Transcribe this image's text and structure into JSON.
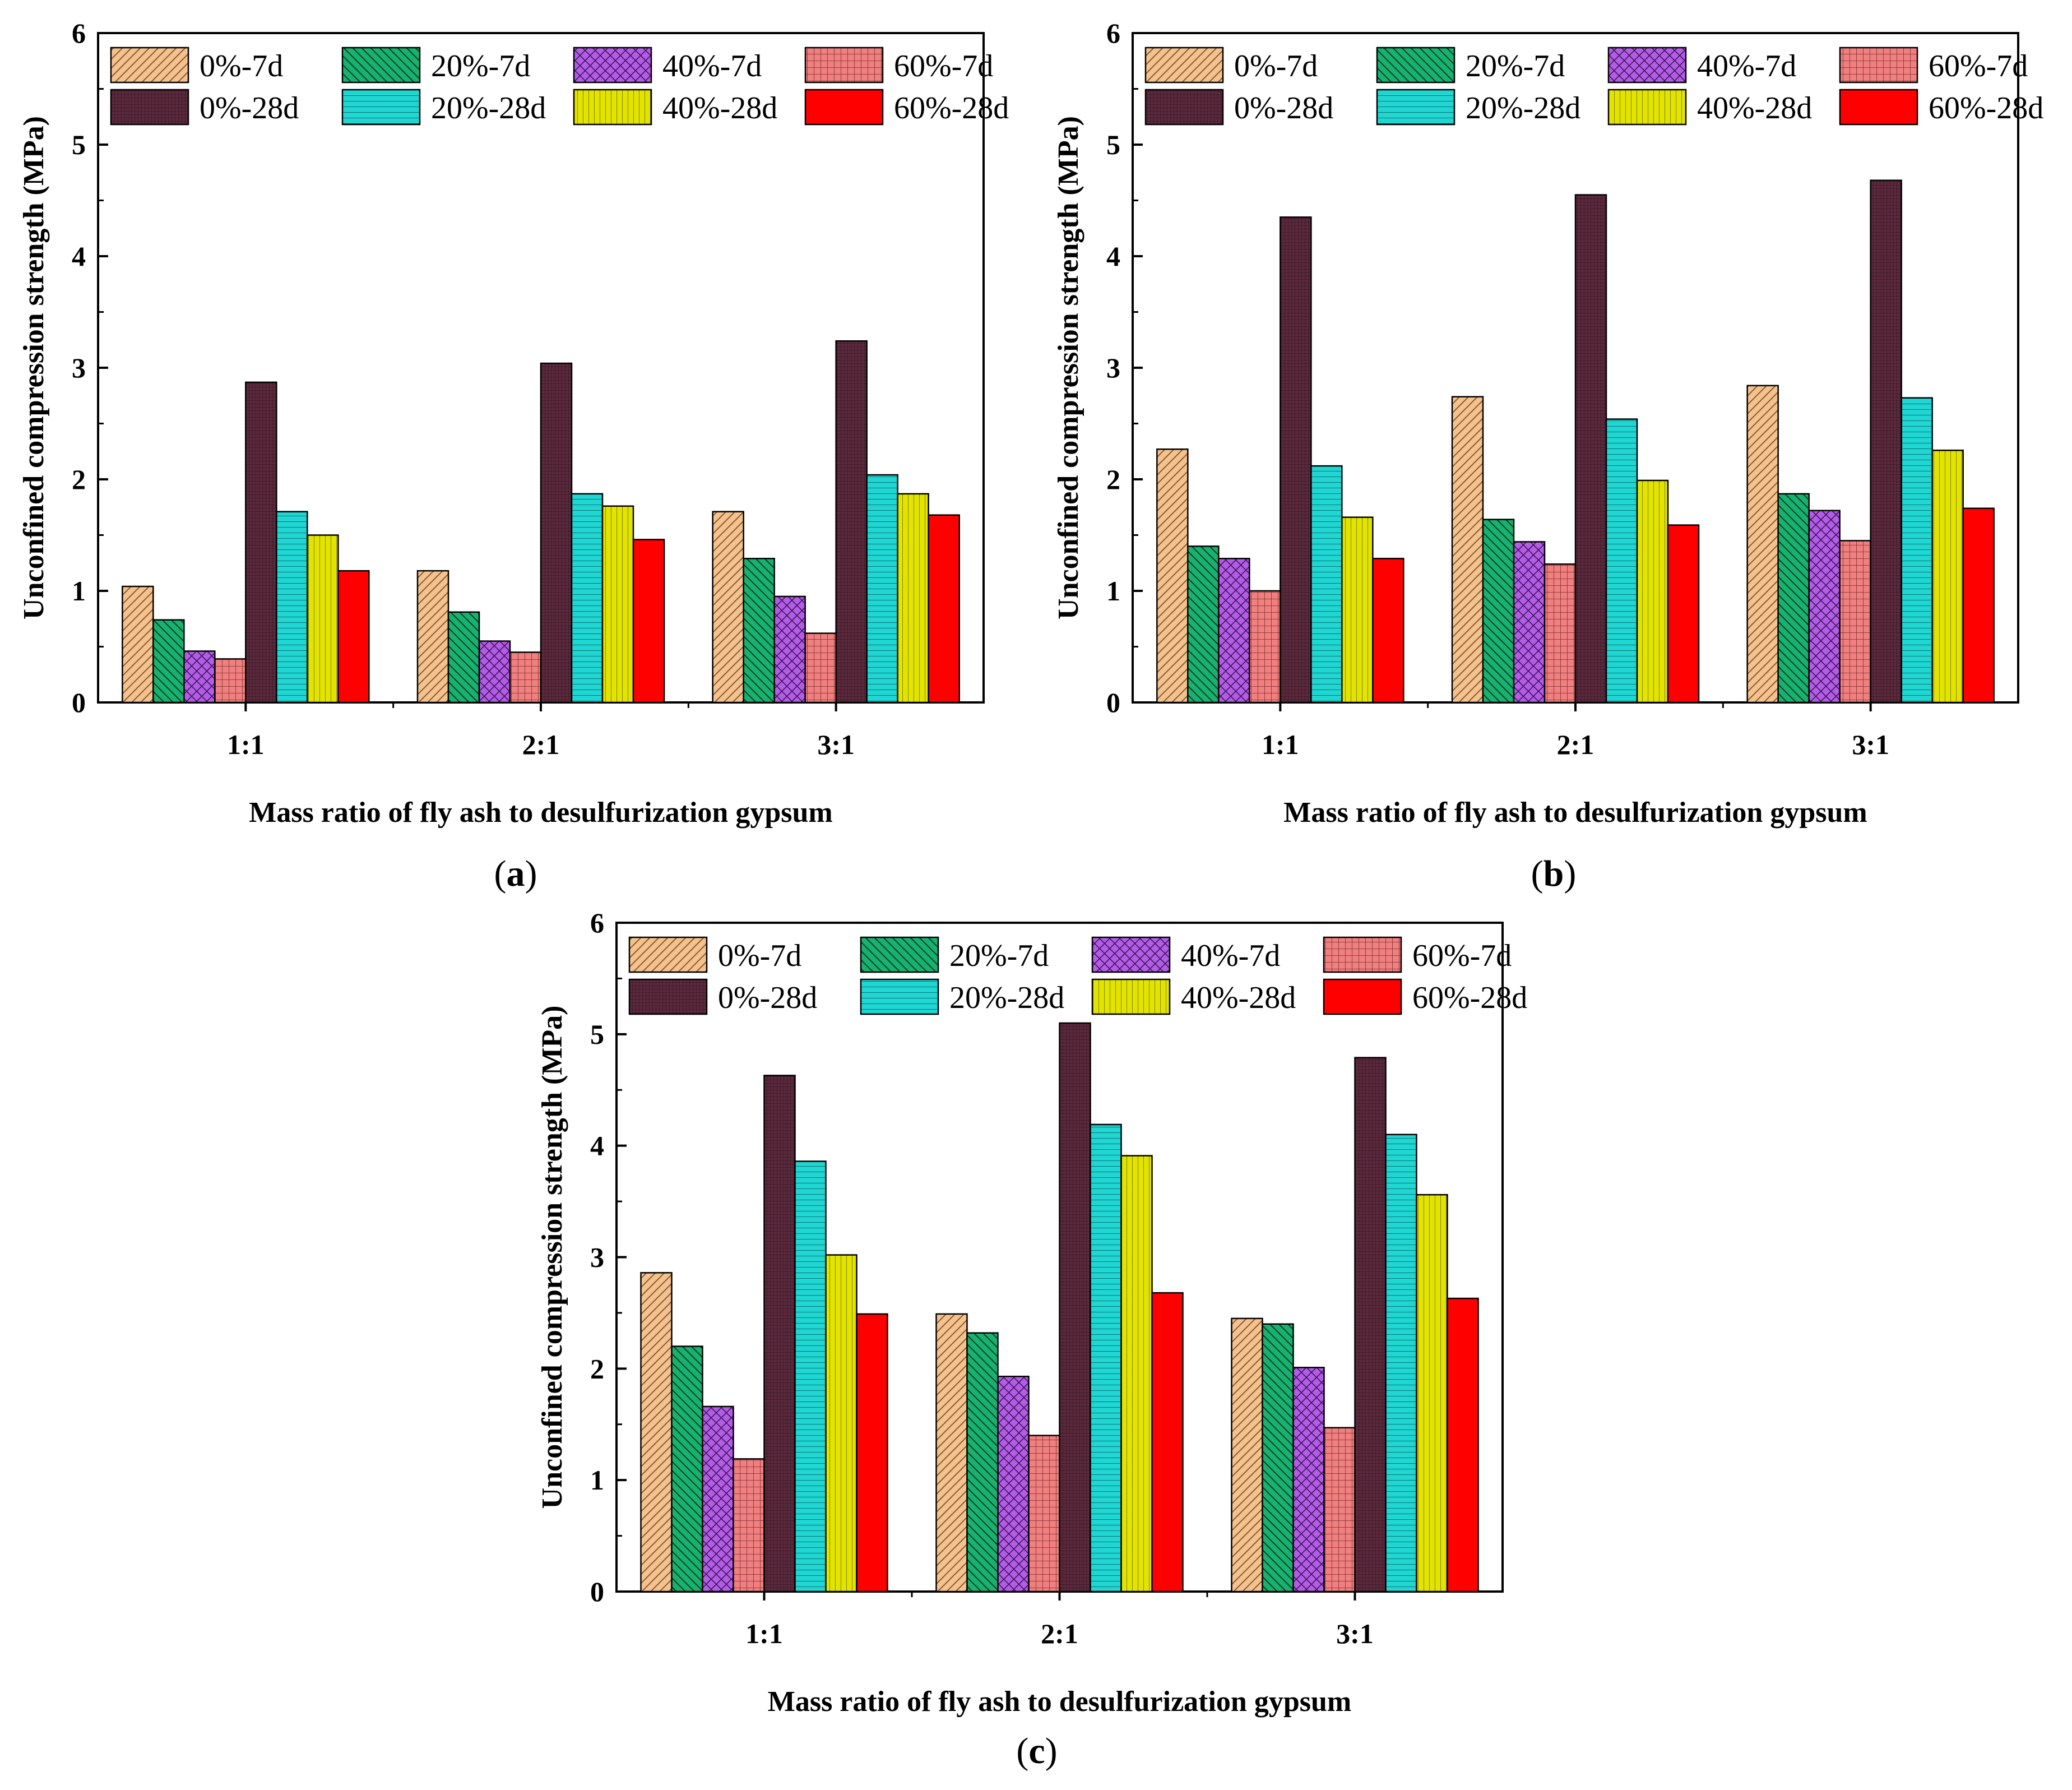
{
  "series_styles": [
    {
      "name": "0%-7d",
      "color": "#F4C28E",
      "pattern": "diag-fwd"
    },
    {
      "name": "20%-7d",
      "color": "#17B26F",
      "pattern": "diag-back"
    },
    {
      "name": "40%-7d",
      "color": "#B35CE6",
      "pattern": "cross-diag"
    },
    {
      "name": "60%-7d",
      "color": "#F08080",
      "pattern": "grid"
    },
    {
      "name": "0%-28d",
      "color": "#5A2A3C",
      "pattern": "dense"
    },
    {
      "name": "20%-28d",
      "color": "#1FD6D2",
      "pattern": "horiz"
    },
    {
      "name": "40%-28d",
      "color": "#E3E300",
      "pattern": "vert"
    },
    {
      "name": "60%-28d",
      "color": "#FF0000",
      "pattern": "solid"
    }
  ],
  "chart_data": [
    {
      "type": "bar",
      "caption_prefix": "(",
      "caption_letter": "a",
      "caption_suffix": ")",
      "categories": [
        "1:1",
        "2:1",
        "3:1"
      ],
      "xlabel": "Mass ratio of fly ash to desulfurization gypsum",
      "ylabel": "Unconfined compression strength (MPa)",
      "ylim": [
        0,
        6
      ],
      "yticks": [
        "0",
        "1",
        "2",
        "3",
        "4",
        "5",
        "6"
      ],
      "legend": "top",
      "series": [
        {
          "name": "0%-7d",
          "values": [
            1.04,
            1.18,
            1.71
          ]
        },
        {
          "name": "20%-7d",
          "values": [
            0.74,
            0.81,
            1.29
          ]
        },
        {
          "name": "40%-7d",
          "values": [
            0.46,
            0.55,
            0.95
          ]
        },
        {
          "name": "60%-7d",
          "values": [
            0.39,
            0.45,
            0.62
          ]
        },
        {
          "name": "0%-28d",
          "values": [
            2.87,
            3.04,
            3.24
          ]
        },
        {
          "name": "20%-28d",
          "values": [
            1.71,
            1.87,
            2.04
          ]
        },
        {
          "name": "40%-28d",
          "values": [
            1.5,
            1.76,
            1.87
          ]
        },
        {
          "name": "60%-28d",
          "values": [
            1.18,
            1.46,
            1.68
          ]
        }
      ]
    },
    {
      "type": "bar",
      "caption_prefix": "(",
      "caption_letter": "b",
      "caption_suffix": ")",
      "categories": [
        "1:1",
        "2:1",
        "3:1"
      ],
      "xlabel": "Mass ratio of fly ash to desulfurization gypsum",
      "ylabel": "Unconfined compression strength (MPa)",
      "ylim": [
        0,
        6
      ],
      "yticks": [
        "0",
        "1",
        "2",
        "3",
        "4",
        "5",
        "6"
      ],
      "legend": "top",
      "series": [
        {
          "name": "0%-7d",
          "values": [
            2.27,
            2.74,
            2.84
          ]
        },
        {
          "name": "20%-7d",
          "values": [
            1.4,
            1.64,
            1.87
          ]
        },
        {
          "name": "40%-7d",
          "values": [
            1.29,
            1.44,
            1.72
          ]
        },
        {
          "name": "60%-7d",
          "values": [
            1.0,
            1.24,
            1.45
          ]
        },
        {
          "name": "0%-28d",
          "values": [
            4.35,
            4.55,
            4.68
          ]
        },
        {
          "name": "20%-28d",
          "values": [
            2.12,
            2.54,
            2.73
          ]
        },
        {
          "name": "40%-28d",
          "values": [
            1.66,
            1.99,
            2.26
          ]
        },
        {
          "name": "60%-28d",
          "values": [
            1.29,
            1.59,
            1.74
          ]
        }
      ]
    },
    {
      "type": "bar",
      "caption_prefix": "(",
      "caption_letter": "c",
      "caption_suffix": ")",
      "categories": [
        "1:1",
        "2:1",
        "3:1"
      ],
      "xlabel": "Mass ratio of fly ash to desulfurization gypsum",
      "ylabel": "Unconfined compression strength (MPa)",
      "ylim": [
        0,
        6
      ],
      "yticks": [
        "0",
        "1",
        "2",
        "3",
        "4",
        "5",
        "6"
      ],
      "legend": "top",
      "series": [
        {
          "name": "0%-7d",
          "values": [
            2.86,
            2.49,
            2.45
          ]
        },
        {
          "name": "20%-7d",
          "values": [
            2.2,
            2.32,
            2.4
          ]
        },
        {
          "name": "40%-7d",
          "values": [
            1.66,
            1.93,
            2.01
          ]
        },
        {
          "name": "60%-7d",
          "values": [
            1.19,
            1.4,
            1.47
          ]
        },
        {
          "name": "0%-28d",
          "values": [
            4.63,
            5.1,
            4.79
          ]
        },
        {
          "name": "20%-28d",
          "values": [
            3.86,
            4.19,
            4.1
          ]
        },
        {
          "name": "40%-28d",
          "values": [
            3.02,
            3.91,
            3.56
          ]
        },
        {
          "name": "60%-28d",
          "values": [
            2.49,
            2.68,
            2.63
          ]
        }
      ]
    }
  ]
}
